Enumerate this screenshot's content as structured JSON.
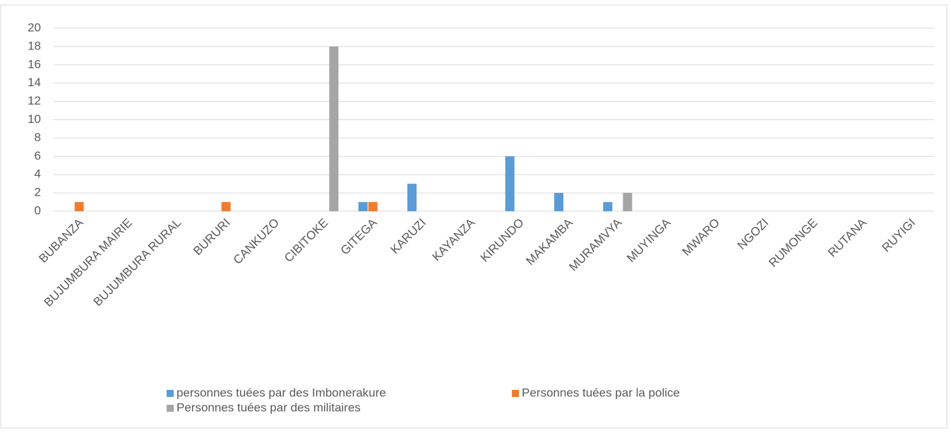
{
  "chart_data": {
    "type": "bar",
    "categories": [
      "BUBANZA",
      "BUJUMBURA MAIRIE",
      "BUJUMBURA RURAL",
      "BURURI",
      "CANKUZO",
      "CIBITOKE",
      "GITEGA",
      "KARUZI",
      "KAYANZA",
      "KIRUNDO",
      "MAKAMBA",
      "MURAMVYA",
      "MUYINGA",
      "MWARO",
      "NGOZI",
      "RUMONGE",
      "RUTANA",
      "RUYIGI"
    ],
    "series": [
      {
        "name": "personnes tuées par des Imbonerakure",
        "color": "#5b9bd5",
        "values": [
          0,
          0,
          0,
          0,
          0,
          0,
          1,
          3,
          0,
          6,
          2,
          1,
          0,
          0,
          0,
          0,
          0,
          0
        ]
      },
      {
        "name": "Personnes tuées par la police",
        "color": "#ed7d31",
        "values": [
          1,
          0,
          0,
          1,
          0,
          0,
          1,
          0,
          0,
          0,
          0,
          0,
          0,
          0,
          0,
          0,
          0,
          0
        ]
      },
      {
        "name": "Personnes tuées par des militaires",
        "color": "#a5a5a5",
        "values": [
          0,
          0,
          0,
          0,
          0,
          18,
          0,
          0,
          0,
          0,
          0,
          2,
          0,
          0,
          0,
          0,
          0,
          0
        ]
      }
    ],
    "ylim": [
      0,
      20
    ],
    "yticks": [
      0,
      2,
      4,
      6,
      8,
      10,
      12,
      14,
      16,
      18,
      20
    ],
    "grid": true,
    "legend": "bottom"
  }
}
